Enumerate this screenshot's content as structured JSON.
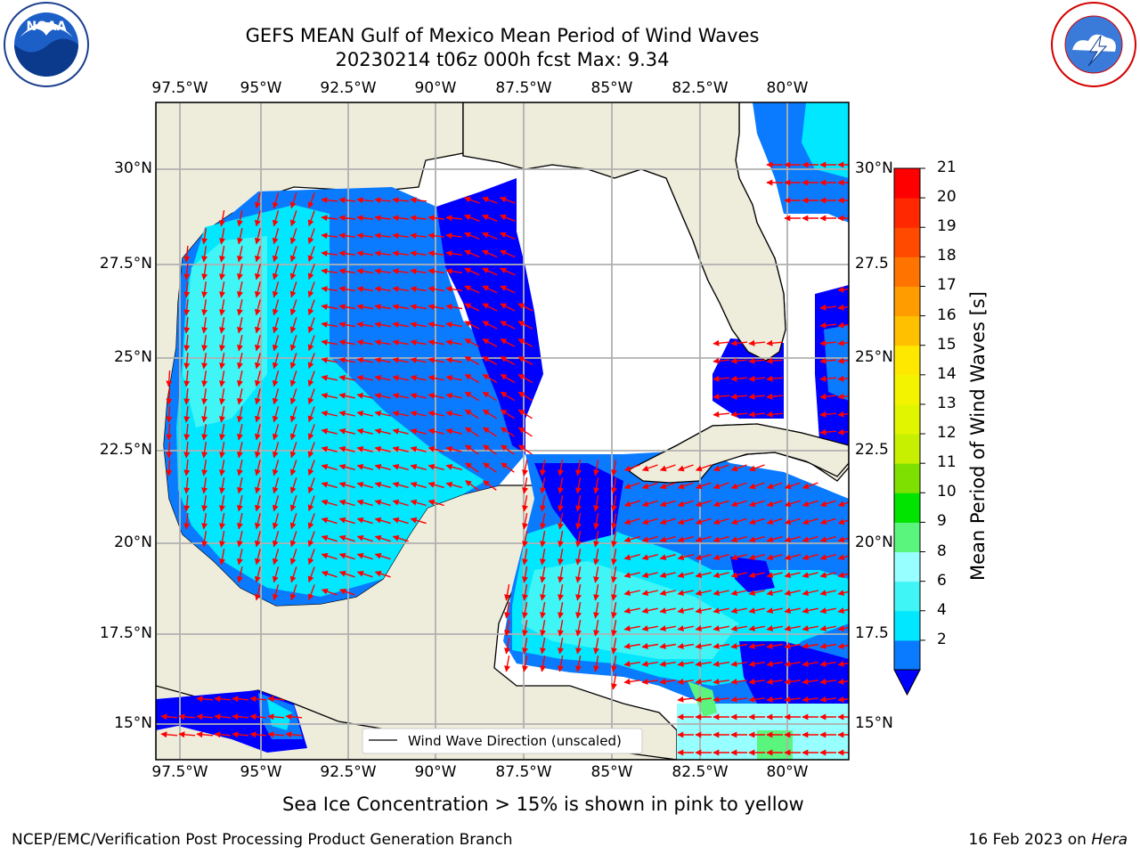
{
  "header": {
    "title_line1": "GEFS MEAN Gulf of Mexico Mean Period of Wind Waves",
    "title_line2": "20230214 t06z 000h fcst   Max: 9.34"
  },
  "logos": {
    "noaa_text": "NOAA",
    "noaa_ring": "NATIONAL OCEANIC AND ATMOSPHERIC ADMINISTRATION · U.S. DEPARTMENT OF COMMERCE",
    "nws_ring": "NATIONAL WEATHER SERVICE"
  },
  "map": {
    "lon_labels": [
      "97.5°W",
      "95°W",
      "92.5°W",
      "90°W",
      "87.5°W",
      "85°W",
      "82.5°W",
      "80°W"
    ],
    "lat_labels_left": [
      "30°N",
      "27.5°N",
      "25°N",
      "22.5°N",
      "20°N",
      "17.5°N",
      "15°N"
    ],
    "lat_labels_right": [
      "30°N",
      "27.5",
      "25°N",
      "22.5",
      "20°N",
      "17.5",
      "15°N"
    ],
    "legend_label": "Wind Wave Direction (unscaled)",
    "colors": {
      "land": "#eeecdb",
      "grid": "#b0b0b0",
      "arrow": "#ff0000"
    }
  },
  "colorbar": {
    "label": "Mean Period of Wind Waves [s]",
    "tick_labels": [
      "21",
      "20",
      "19",
      "18",
      "17",
      "16",
      "15",
      "14",
      "13",
      "12",
      "11",
      "10",
      "9",
      "8",
      "6",
      "4",
      "2"
    ],
    "bins": [
      {
        "from": 2,
        "to": 4,
        "color": "#0a7bff"
      },
      {
        "from": 4,
        "to": 6,
        "color": "#00e7ff"
      },
      {
        "from": 6,
        "to": 8,
        "color": "#3ff5f5"
      },
      {
        "from": 8,
        "to": 9,
        "color": "#97ffff"
      },
      {
        "from": 9,
        "to": 10,
        "color": "#5af57d"
      },
      {
        "from": 10,
        "to": 11,
        "color": "#00e400"
      },
      {
        "from": 11,
        "to": 12,
        "color": "#7ee000"
      },
      {
        "from": 12,
        "to": 13,
        "color": "#c7f000"
      },
      {
        "from": 13,
        "to": 14,
        "color": "#e2f500"
      },
      {
        "from": 14,
        "to": 15,
        "color": "#f3f300"
      },
      {
        "from": 15,
        "to": 16,
        "color": "#ffe800"
      },
      {
        "from": 16,
        "to": 17,
        "color": "#ffc000"
      },
      {
        "from": 17,
        "to": 18,
        "color": "#ff9c00"
      },
      {
        "from": 18,
        "to": 19,
        "color": "#ff7400"
      },
      {
        "from": 19,
        "to": 20,
        "color": "#ff4a00"
      },
      {
        "from": 20,
        "to": 21,
        "color": "#ff2800"
      },
      {
        "from": 21,
        "to": 22,
        "color": "#ff0000"
      }
    ],
    "under_color": "#0000ff"
  },
  "notes": {
    "sea_ice": "Sea Ice Concentration > 15% is shown in pink to yellow"
  },
  "footer": {
    "left": "NCEP/EMC/Verification Post Processing Product Generation Branch",
    "right_prefix": "16 Feb 2023 on ",
    "right_host": "Hera"
  }
}
